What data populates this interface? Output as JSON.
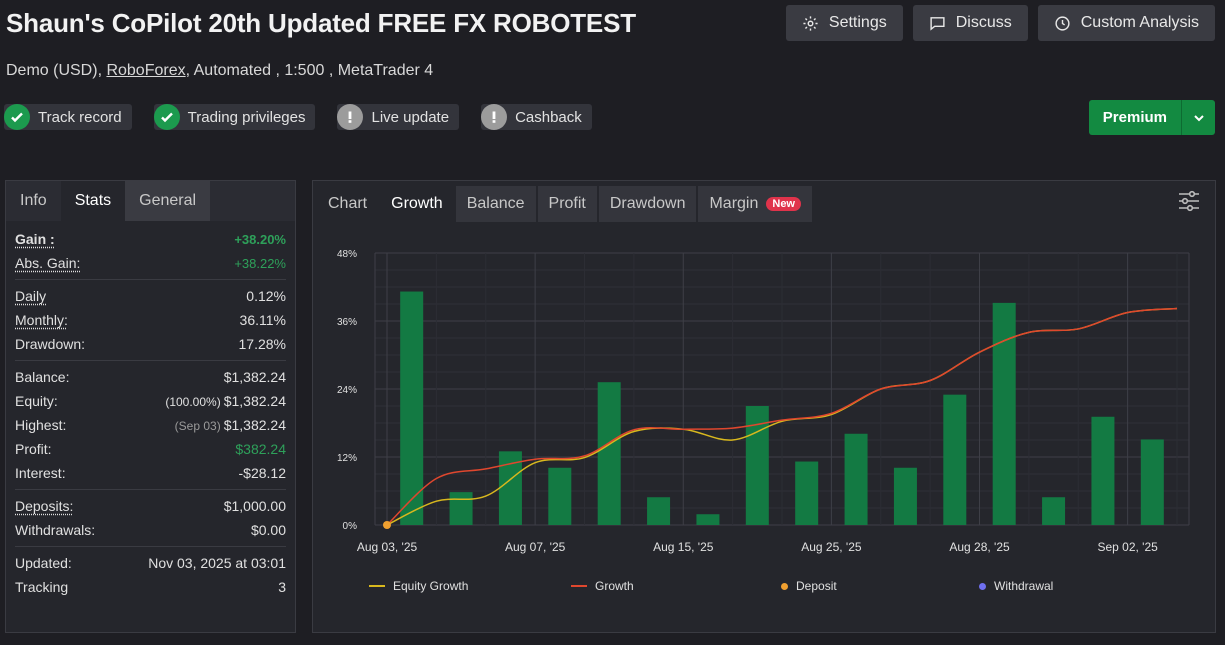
{
  "header": {
    "title": "Shaun's CoPilot 20th Updated FREE FX ROBOTEST",
    "subtitle_pre": "Demo (USD), ",
    "broker": "RoboForex",
    "subtitle_post": ", Automated , 1:500 , MetaTrader 4"
  },
  "top_buttons": {
    "settings": "Settings",
    "discuss": "Discuss",
    "custom_analysis": "Custom Analysis"
  },
  "badges": {
    "track_record": "Track record",
    "trading_privileges": "Trading privileges",
    "live_update": "Live update",
    "cashback": "Cashback"
  },
  "premium": {
    "label": "Premium"
  },
  "left_tabs": {
    "info": "Info",
    "stats": "Stats",
    "general": "General"
  },
  "stats": {
    "gain": {
      "label": "Gain :",
      "value": "+38.20%"
    },
    "abs_gain": {
      "label": "Abs. Gain:",
      "value": "+38.22%"
    },
    "daily": {
      "label": "Daily",
      "value": "0.12%"
    },
    "monthly": {
      "label": "Monthly:",
      "value": "36.11%"
    },
    "drawdown": {
      "label": "Drawdown:",
      "value": "17.28%"
    },
    "balance": {
      "label": "Balance:",
      "value": "$1,382.24"
    },
    "equity": {
      "label": "Equity:",
      "note": "(100.00%)",
      "value": "$1,382.24"
    },
    "highest": {
      "label": "Highest:",
      "note": "(Sep 03)",
      "value": "$1,382.24"
    },
    "profit": {
      "label": "Profit:",
      "value": "$382.24"
    },
    "interest": {
      "label": "Interest:",
      "value": "-$28.12"
    },
    "deposits": {
      "label": "Deposits:",
      "value": "$1,000.00"
    },
    "withdrawals": {
      "label": "Withdrawals:",
      "value": "$0.00"
    },
    "updated": {
      "label": "Updated:",
      "value": "Nov 03, 2025 at 03:01"
    },
    "tracking": {
      "label": "Tracking",
      "value": "3"
    }
  },
  "chart_tabs": {
    "chart": "Chart",
    "growth": "Growth",
    "balance": "Balance",
    "profit": "Profit",
    "drawdown": "Drawdown",
    "margin": "Margin",
    "new_badge": "New"
  },
  "colors": {
    "bar": "#137a43",
    "growth": "#e0472e",
    "equity_growth": "#d8b81e",
    "deposit": "#f0a030",
    "withdrawal": "#6f6ff0",
    "accent_green": "#2ea05a"
  },
  "chart_data": {
    "type": "bar",
    "ylim": [
      0,
      48
    ],
    "yticks": [
      "0%",
      "12%",
      "24%",
      "36%",
      "48%"
    ],
    "xticks": [
      "Aug 03, '25",
      "Aug 07, '25",
      "Aug 15, '25",
      "Aug 25, '25",
      "Aug 28, '25",
      "Sep 02, '25"
    ],
    "bars": [
      41.2,
      5.8,
      13.0,
      10.1,
      25.2,
      4.9,
      1.9,
      21.0,
      11.2,
      16.1,
      10.1,
      23.0,
      39.2,
      4.9,
      19.1,
      15.1
    ],
    "series": [
      {
        "name": "Equity Growth",
        "points": [
          [
            0,
            0
          ],
          [
            1,
            4.2
          ],
          [
            2,
            5.1
          ],
          [
            3,
            11.0
          ],
          [
            4,
            11.9
          ],
          [
            5,
            16.5
          ],
          [
            6,
            16.9
          ],
          [
            7,
            15.0
          ],
          [
            8,
            18.3
          ],
          [
            9,
            19.5
          ],
          [
            10,
            24.0
          ],
          [
            11,
            25.5
          ],
          [
            12,
            30.5
          ],
          [
            13,
            34.0
          ],
          [
            14,
            34.6
          ],
          [
            15,
            37.5
          ],
          [
            16,
            38.2
          ]
        ]
      },
      {
        "name": "Growth",
        "points": [
          [
            0,
            0
          ],
          [
            1,
            8.2
          ],
          [
            2,
            9.9
          ],
          [
            3,
            11.6
          ],
          [
            4,
            12.2
          ],
          [
            5,
            16.8
          ],
          [
            6,
            16.9
          ],
          [
            7,
            17.1
          ],
          [
            8,
            18.5
          ],
          [
            9,
            19.7
          ],
          [
            10,
            24.0
          ],
          [
            11,
            25.5
          ],
          [
            12,
            30.5
          ],
          [
            13,
            34.0
          ],
          [
            14,
            34.6
          ],
          [
            15,
            37.5
          ],
          [
            16,
            38.2
          ]
        ]
      }
    ],
    "deposit_points": [
      [
        0,
        0
      ]
    ],
    "legend": [
      "Equity Growth",
      "Growth",
      "Deposit",
      "Withdrawal"
    ]
  }
}
